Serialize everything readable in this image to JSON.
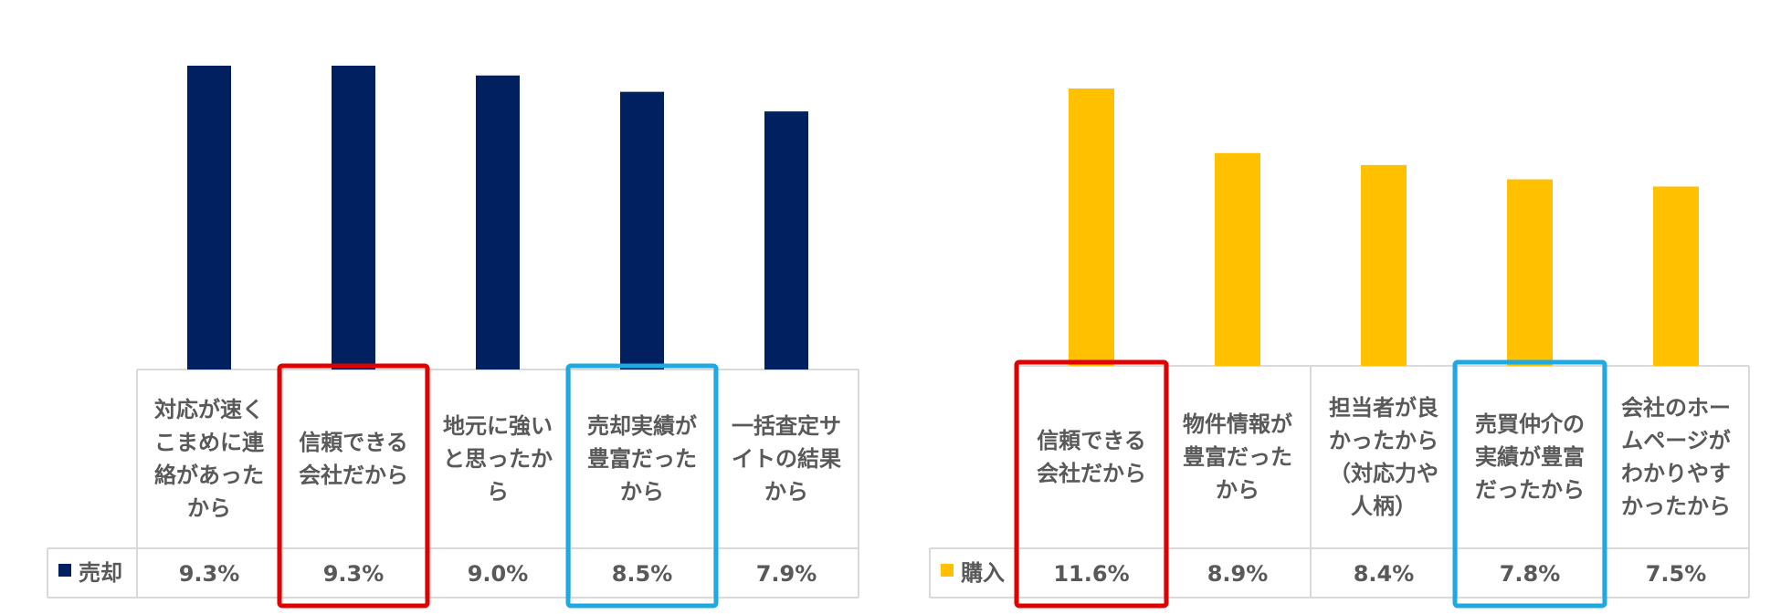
{
  "chart_data": [
    {
      "type": "bar",
      "series": [
        {
          "name": "売却",
          "color": "#002060",
          "values": [
            9.3,
            9.3,
            9.0,
            8.5,
            7.9
          ]
        }
      ],
      "categories": [
        [
          "対応が速く",
          "こまめに連",
          "絡があった",
          "から"
        ],
        [
          "信頼できる",
          "会社だから"
        ],
        [
          "地元に強い",
          "と思ったか",
          "ら"
        ],
        [
          "売却実績が",
          "豊富だった",
          "から"
        ],
        [
          "一括査定サ",
          "イトの結果",
          "から"
        ]
      ],
      "value_labels": [
        "9.3%",
        "9.3%",
        "9.0%",
        "8.5%",
        "7.9%"
      ],
      "highlights": [
        {
          "index": 1,
          "color": "#e00000"
        },
        {
          "index": 3,
          "color": "#1fa9e1"
        }
      ],
      "ylim": [
        0,
        9.3
      ]
    },
    {
      "type": "bar",
      "series": [
        {
          "name": "購入",
          "color": "#ffc000",
          "values": [
            11.6,
            8.9,
            8.4,
            7.8,
            7.5
          ]
        }
      ],
      "categories": [
        [
          "信頼できる",
          "会社だから"
        ],
        [
          "物件情報が",
          "豊富だった",
          "から"
        ],
        [
          "担当者が良",
          "かったから",
          "（対応力や",
          "人柄）"
        ],
        [
          "売買仲介の",
          "実績が豊富",
          "だったから"
        ],
        [
          "会社のホー",
          "ムページが",
          "わかりやす",
          "かったから"
        ]
      ],
      "value_labels": [
        "11.6%",
        "8.9%",
        "8.4%",
        "7.8%",
        "7.5%"
      ],
      "highlights": [
        {
          "index": 0,
          "color": "#e00000"
        },
        {
          "index": 3,
          "color": "#1fa9e1"
        }
      ],
      "ylim": [
        0,
        11.6
      ]
    }
  ]
}
